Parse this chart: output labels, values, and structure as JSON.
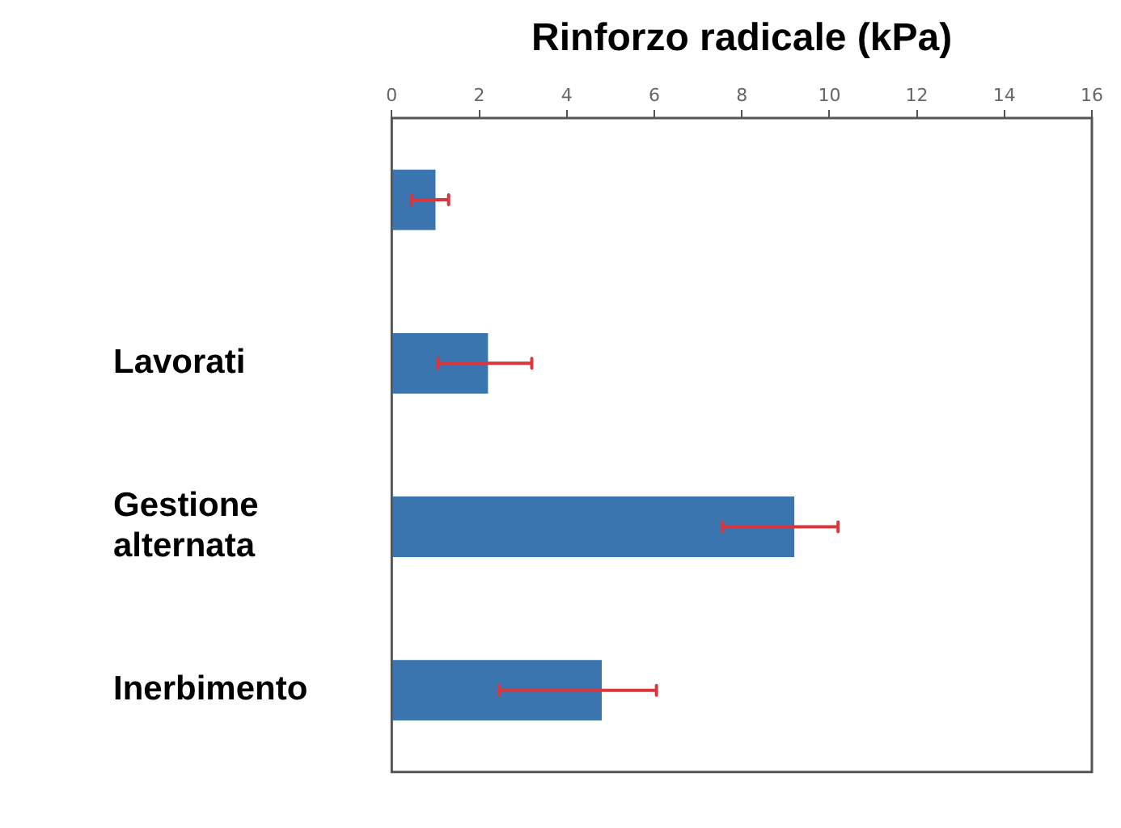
{
  "chart_data": {
    "type": "bar",
    "orientation": "horizontal",
    "xlabel": "Rinforzo radicale (kPa)",
    "categories": [
      null,
      "Lavorati",
      "Gestione alternata",
      "Inerbimento"
    ],
    "values": [
      1.0,
      2.2,
      9.2,
      4.8
    ],
    "errors": [
      [
        0.45,
        1.3
      ],
      [
        1.05,
        3.2
      ],
      [
        7.55,
        10.2
      ],
      [
        2.45,
        6.05
      ]
    ],
    "color": "#3a75b0",
    "xlim": [
      0,
      16
    ],
    "xticks": [
      0,
      2,
      4,
      6,
      8,
      10,
      12,
      14,
      16
    ],
    "grid": false,
    "legend": false
  }
}
